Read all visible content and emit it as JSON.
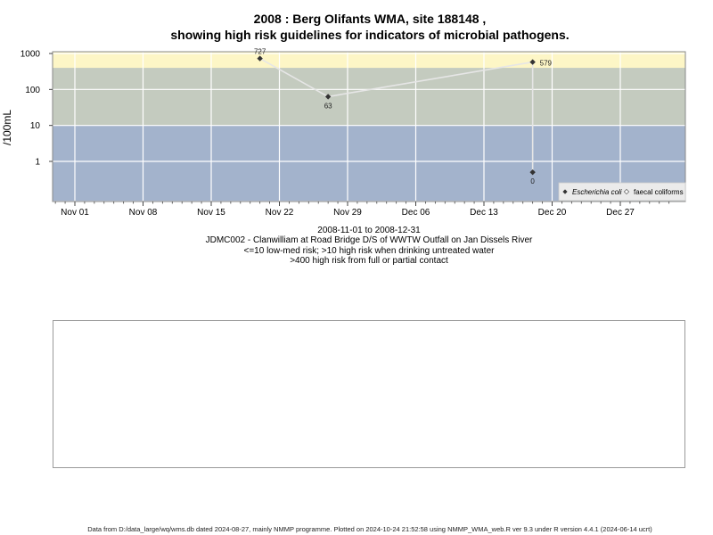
{
  "chart_data": {
    "type": "scatter",
    "title_line1": "2008 : Berg Olifants WMA, site 188148 ,",
    "title_line2": "showing high risk guidelines for indicators of microbial pathogens.",
    "ylabel": "/100mL",
    "xlabel": "",
    "y_scale": "log",
    "y_ticks": [
      "1",
      "10",
      "100",
      "1000"
    ],
    "y_tick_values": [
      1,
      10,
      100,
      1000
    ],
    "x_tick_labels": [
      "Nov 01",
      "Nov 08",
      "Nov 15",
      "Nov 22",
      "Nov 29",
      "Dec 06",
      "Dec 13",
      "Dec 20",
      "Dec 27"
    ],
    "x_tick_dates": [
      "2008-11-01",
      "2008-11-08",
      "2008-11-15",
      "2008-11-22",
      "2008-11-29",
      "2008-12-06",
      "2008-12-13",
      "2008-12-20",
      "2008-12-27"
    ],
    "xlim": [
      "2008-10-29",
      "2009-01-01"
    ],
    "risk_bands": [
      {
        "name": "low-med",
        "from": 0.08,
        "to": 10,
        "color": "#a3b3cc"
      },
      {
        "name": "high-untreated",
        "from": 10,
        "to": 400,
        "color": "#c4cbbf"
      },
      {
        "name": "high-contact",
        "from": 400,
        "to": 1700,
        "color": "#fdf6c6"
      }
    ],
    "grid": true,
    "legend_position": "bottom-right",
    "series": [
      {
        "name": "Escherichia coli",
        "marker": "filled-diamond",
        "color": "#333333",
        "points": [
          {
            "x": "2008-11-20",
            "y": 727,
            "label": "727"
          },
          {
            "x": "2008-11-27",
            "y": 63,
            "label": "63"
          },
          {
            "x": "2008-12-18",
            "y": 579,
            "label": "579"
          },
          {
            "x": "2008-12-18",
            "y": 0.5,
            "label": "0"
          }
        ]
      },
      {
        "name": "faecal coliforms",
        "marker": "open-diamond",
        "color": "#666666",
        "points": []
      }
    ]
  },
  "captions": {
    "date_range": "2008-11-01 to 2008-12-31",
    "site": "JDMC002 - Clanwilliam at Road Bridge D/S of WWTW Outfall on Jan Dissels River",
    "risk_note_1": "<=10 low-med risk; >10 high risk when drinking untreated water",
    "risk_note_2": ">400 high risk from full or partial contact"
  },
  "footer": "Data from D:/data_large/wq/wms.db dated 2024-08-27, mainly NMMP programme. Plotted on 2024-10-24 21:52:58 using NMMP_WMA_web.R ver 9.3 under R version 4.4.1 (2024-06-14 ucrt)"
}
